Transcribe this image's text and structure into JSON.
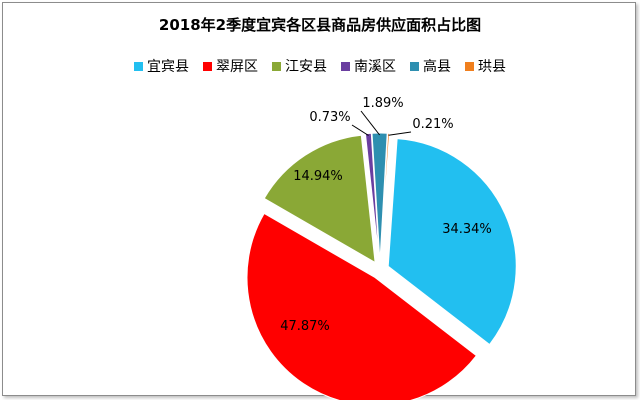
{
  "chart_data": {
    "type": "pie",
    "title": "2018年2季度宜宾各区县商品房供应面积占比图",
    "legend_position": "top",
    "categories": [
      "宜宾县",
      "翠屏区",
      "江安县",
      "南溪区",
      "高县",
      "珙县"
    ],
    "values": [
      34.34,
      47.87,
      14.94,
      0.73,
      1.89,
      0.21
    ],
    "labels": [
      "34.34%",
      "47.87%",
      "14.94%",
      "0.73%",
      "1.89%",
      "0.21%"
    ],
    "colors": [
      "#22bff0",
      "#ff0000",
      "#8aa836",
      "#6a3ea0",
      "#2e8fb0",
      "#f07f1e"
    ]
  }
}
